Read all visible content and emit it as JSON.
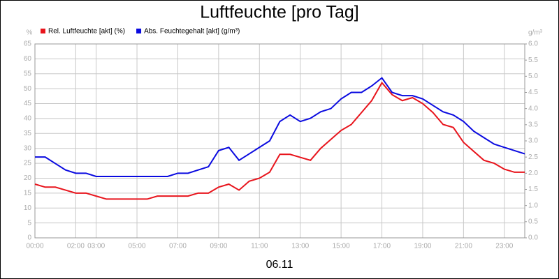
{
  "chart_data": {
    "type": "line",
    "title": "Luftfeuchte [pro Tag]",
    "xlabel": "06.11",
    "ylabel": "%",
    "y2label": "g/m³",
    "x": [
      0,
      0.5,
      1,
      1.5,
      2,
      2.5,
      3,
      3.5,
      4,
      4.5,
      5,
      5.5,
      6,
      6.5,
      7,
      7.5,
      8,
      8.5,
      9,
      9.5,
      10,
      10.5,
      11,
      11.5,
      12,
      12.5,
      13,
      13.5,
      14,
      14.5,
      15,
      15.5,
      16,
      16.5,
      17,
      17.5,
      18,
      18.5,
      19,
      19.5,
      20,
      20.5,
      21,
      21.5,
      22,
      22.5,
      23,
      23.5,
      24
    ],
    "xlim": [
      0,
      24
    ],
    "xticks": [
      {
        "value": 0,
        "label": "00:00"
      },
      {
        "value": 2,
        "label": "02:00"
      },
      {
        "value": 3,
        "label": "03:00"
      },
      {
        "value": 5,
        "label": "05:00"
      },
      {
        "value": 7,
        "label": "07:00"
      },
      {
        "value": 9,
        "label": "09:00"
      },
      {
        "value": 11,
        "label": "11:00"
      },
      {
        "value": 13,
        "label": "13:00"
      },
      {
        "value": 15,
        "label": "15:00"
      },
      {
        "value": 17,
        "label": "17:00"
      },
      {
        "value": 19,
        "label": "19:00"
      },
      {
        "value": 21,
        "label": "21:00"
      },
      {
        "value": 23,
        "label": "23:00"
      }
    ],
    "ylim": [
      0,
      65
    ],
    "yticks": [
      0,
      5,
      10,
      15,
      20,
      25,
      30,
      35,
      40,
      45,
      50,
      55,
      60,
      65
    ],
    "y2lim": [
      0,
      6
    ],
    "y2ticks": [
      {
        "value": 0,
        "label": "0.0"
      },
      0.5,
      {
        "value": 1,
        "label": "1.0"
      },
      1.5,
      {
        "value": 2,
        "label": "2.0"
      },
      2.5,
      {
        "value": 3,
        "label": "3.0"
      },
      3.5,
      {
        "value": 4,
        "label": "4.0"
      },
      4.5,
      {
        "value": 5,
        "label": "5.0"
      },
      5.5,
      {
        "value": 6,
        "label": "6.0"
      }
    ],
    "grid": true,
    "series": [
      {
        "name": "Rel. Luftfeuchte [akt] (%)",
        "color": "#e8141c",
        "values": [
          18,
          17,
          17,
          16,
          15,
          15,
          14,
          13,
          13,
          13,
          13,
          13,
          14,
          14,
          14,
          14,
          15,
          15,
          17,
          18,
          16,
          19,
          20,
          22,
          28,
          28,
          27,
          26,
          30,
          33,
          36,
          38,
          42,
          46,
          52,
          48,
          46,
          47,
          45,
          42,
          38,
          37,
          32,
          29,
          26,
          25,
          23,
          22,
          22
        ]
      },
      {
        "name": "Abs. Feuchtegehalt [akt] (g/m³)",
        "color": "#0a0ae0",
        "axis": "y2",
        "values": [
          2.5,
          2.5,
          2.3,
          2.1,
          2.0,
          2.0,
          1.9,
          1.9,
          1.9,
          1.9,
          1.9,
          1.9,
          1.9,
          1.9,
          2.0,
          2.0,
          2.1,
          2.2,
          2.7,
          2.8,
          2.4,
          2.6,
          2.8,
          3.0,
          3.6,
          3.8,
          3.6,
          3.7,
          3.9,
          4.0,
          4.3,
          4.5,
          4.5,
          4.7,
          4.95,
          4.5,
          4.4,
          4.4,
          4.3,
          4.1,
          3.9,
          3.8,
          3.6,
          3.3,
          3.1,
          2.9,
          2.8,
          2.7,
          2.6
        ]
      }
    ]
  }
}
